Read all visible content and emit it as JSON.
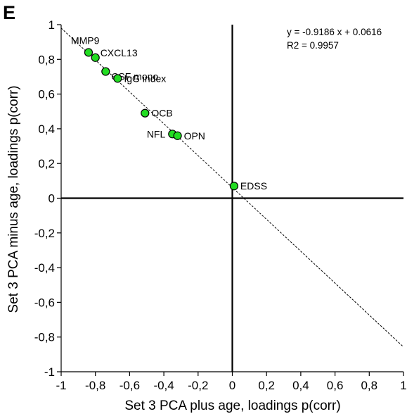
{
  "panel_label": "E",
  "chart_data": {
    "type": "scatter",
    "xlabel": "Set 3 PCA plus age, loadings p(corr)",
    "ylabel": "Set 3 PCA minus age, loadings p(corr)",
    "xlim": [
      -1,
      1
    ],
    "ylim": [
      -1,
      1
    ],
    "x_ticks": [
      -1,
      -0.8,
      -0.6,
      -0.4,
      -0.2,
      0,
      0.2,
      0.4,
      0.6,
      0.8,
      1
    ],
    "x_tick_labels": [
      "-1",
      "-0,8",
      "-0,6",
      "-0,4",
      "-0,2",
      "0",
      "0,2",
      "0,4",
      "0,6",
      "0,8",
      "1"
    ],
    "y_ticks": [
      1,
      0.8,
      0.6,
      0.4,
      0.2,
      0,
      -0.2,
      -0.4,
      -0.6,
      -0.8,
      -1
    ],
    "y_tick_labels": [
      "1",
      "0,8",
      "0,6",
      "0,4",
      "0,2",
      "0",
      "-0,2",
      "-0,4",
      "-0,6",
      "-0,8",
      "-1"
    ],
    "grid": false,
    "points": [
      {
        "label": "MMP9",
        "x": -0.84,
        "y": 0.84,
        "label_pos": "above-left"
      },
      {
        "label": "CXCL13",
        "x": -0.8,
        "y": 0.81,
        "label_pos": "right-up"
      },
      {
        "label": "CSF mono",
        "x": -0.74,
        "y": 0.73,
        "label_pos": "right-far"
      },
      {
        "label": "IgG index",
        "x": -0.67,
        "y": 0.69,
        "label_pos": "right"
      },
      {
        "label": "OCB",
        "x": -0.51,
        "y": 0.49,
        "label_pos": "right"
      },
      {
        "label": "NFL",
        "x": -0.35,
        "y": 0.37,
        "label_pos": "left"
      },
      {
        "label": "OPN",
        "x": -0.32,
        "y": 0.36,
        "label_pos": "right"
      },
      {
        "label": "EDSS",
        "x": 0.01,
        "y": 0.07,
        "label_pos": "right"
      }
    ],
    "regression": {
      "slope": -0.9186,
      "intercept": 0.0616,
      "style": "dashed"
    },
    "equation_text": "y = -0.9186 x + 0.0616",
    "r2_text": "R2 = 0.9957",
    "point_color": "#22dd22",
    "point_stroke": "#000000"
  }
}
